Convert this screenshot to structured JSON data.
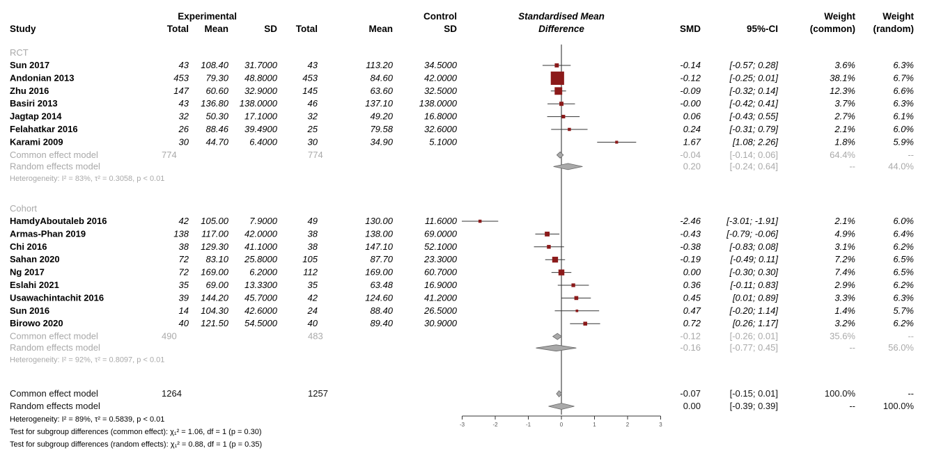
{
  "chart_data": {
    "type": "forest",
    "headers": {
      "study": "Study",
      "experimental": "Experimental",
      "control": "Control",
      "total": "Total",
      "mean": "Mean",
      "sd": "SD",
      "plot_title_line1": "Standardised Mean",
      "plot_title_line2": "Difference",
      "smd": "SMD",
      "ci": "95%-CI",
      "weight": "Weight",
      "weight_common": "(common)",
      "weight_random": "(random)"
    },
    "axis": {
      "xlim": [
        -3,
        3
      ],
      "null_line": 0
    },
    "colors": {
      "box": "#8b1a1a",
      "summary": "#a9a9a9",
      "line": "#333333",
      "muted": "#a9a9a9"
    },
    "subgroups": [
      {
        "label": "RCT",
        "studies": [
          {
            "name": "Sun 2017",
            "e_total": "43",
            "e_mean": "108.40",
            "e_sd": "31.7000",
            "c_total": "43",
            "c_mean": "113.20",
            "c_sd": "34.5000",
            "smd": -0.14,
            "lower": -0.57,
            "upper": 0.28,
            "smd_text": "-0.14",
            "ci_text": "[-0.57; 0.28]",
            "w_common": "3.6%",
            "w_random": "6.3%",
            "weight": 3.6
          },
          {
            "name": "Andonian 2013",
            "e_total": "453",
            "e_mean": "79.30",
            "e_sd": "48.8000",
            "c_total": "453",
            "c_mean": "84.60",
            "c_sd": "42.0000",
            "smd": -0.12,
            "lower": -0.25,
            "upper": 0.01,
            "smd_text": "-0.12",
            "ci_text": "[-0.25; 0.01]",
            "w_common": "38.1%",
            "w_random": "6.7%",
            "weight": 38.1
          },
          {
            "name": "Zhu 2016",
            "e_total": "147",
            "e_mean": "60.60",
            "e_sd": "32.9000",
            "c_total": "145",
            "c_mean": "63.60",
            "c_sd": "32.5000",
            "smd": -0.09,
            "lower": -0.32,
            "upper": 0.14,
            "smd_text": "-0.09",
            "ci_text": "[-0.32; 0.14]",
            "w_common": "12.3%",
            "w_random": "6.6%",
            "weight": 12.3
          },
          {
            "name": "Basiri 2013",
            "e_total": "43",
            "e_mean": "136.80",
            "e_sd": "138.0000",
            "c_total": "46",
            "c_mean": "137.10",
            "c_sd": "138.0000",
            "smd": 0.0,
            "lower": -0.42,
            "upper": 0.41,
            "smd_text": "-0.00",
            "ci_text": "[-0.42; 0.41]",
            "w_common": "3.7%",
            "w_random": "6.3%",
            "weight": 3.7
          },
          {
            "name": "Jagtap 2014",
            "e_total": "32",
            "e_mean": "50.30",
            "e_sd": "17.1000",
            "c_total": "32",
            "c_mean": "49.20",
            "c_sd": "16.8000",
            "smd": 0.06,
            "lower": -0.43,
            "upper": 0.55,
            "smd_text": "0.06",
            "ci_text": "[-0.43; 0.55]",
            "w_common": "2.7%",
            "w_random": "6.1%",
            "weight": 2.7
          },
          {
            "name": "Felahatkar 2016",
            "e_total": "26",
            "e_mean": "88.46",
            "e_sd": "39.4900",
            "c_total": "25",
            "c_mean": "79.58",
            "c_sd": "32.6000",
            "smd": 0.24,
            "lower": -0.31,
            "upper": 0.79,
            "smd_text": "0.24",
            "ci_text": "[-0.31; 0.79]",
            "w_common": "2.1%",
            "w_random": "6.0%",
            "weight": 2.1
          },
          {
            "name": "Karami 2009",
            "e_total": "30",
            "e_mean": "44.70",
            "e_sd": "6.4000",
            "c_total": "30",
            "c_mean": "34.90",
            "c_sd": "5.1000",
            "smd": 1.67,
            "lower": 1.08,
            "upper": 2.26,
            "smd_text": "1.67",
            "ci_text": "[1.08; 2.26]",
            "w_common": "1.8%",
            "w_random": "5.9%",
            "weight": 1.8
          }
        ],
        "common": {
          "label": "Common effect model",
          "e_total": "774",
          "c_total": "774",
          "smd": -0.04,
          "lower": -0.14,
          "upper": 0.06,
          "smd_text": "-0.04",
          "ci_text": "[-0.14; 0.06]",
          "w_common": "64.4%",
          "w_random": "--"
        },
        "random": {
          "label": "Random effects model",
          "smd": 0.2,
          "lower": -0.24,
          "upper": 0.64,
          "smd_text": "0.20",
          "ci_text": "[-0.24; 0.64]",
          "w_common": "--",
          "w_random": "44.0%"
        },
        "het": "Heterogeneity: I² = 83%, τ² = 0.3058, p < 0.01"
      },
      {
        "label": "Cohort",
        "studies": [
          {
            "name": "HamdyAboutaleb 2016",
            "e_total": "42",
            "e_mean": "105.00",
            "e_sd": "7.9000",
            "c_total": "49",
            "c_mean": "130.00",
            "c_sd": "11.6000",
            "smd": -2.46,
            "lower": -3.01,
            "upper": -1.91,
            "smd_text": "-2.46",
            "ci_text": "[-3.01; -1.91]",
            "w_common": "2.1%",
            "w_random": "6.0%",
            "weight": 2.1
          },
          {
            "name": "Armas-Phan 2019",
            "e_total": "138",
            "e_mean": "117.00",
            "e_sd": "42.0000",
            "c_total": "38",
            "c_mean": "138.00",
            "c_sd": "69.0000",
            "smd": -0.43,
            "lower": -0.79,
            "upper": -0.06,
            "smd_text": "-0.43",
            "ci_text": "[-0.79; -0.06]",
            "w_common": "4.9%",
            "w_random": "6.4%",
            "weight": 4.9
          },
          {
            "name": "Chi 2016",
            "e_total": "38",
            "e_mean": "129.30",
            "e_sd": "41.1000",
            "c_total": "38",
            "c_mean": "147.10",
            "c_sd": "52.1000",
            "smd": -0.38,
            "lower": -0.83,
            "upper": 0.08,
            "smd_text": "-0.38",
            "ci_text": "[-0.83; 0.08]",
            "w_common": "3.1%",
            "w_random": "6.2%",
            "weight": 3.1
          },
          {
            "name": "Sahan 2020",
            "e_total": "72",
            "e_mean": "83.10",
            "e_sd": "25.8000",
            "c_total": "105",
            "c_mean": "87.70",
            "c_sd": "23.3000",
            "smd": -0.19,
            "lower": -0.49,
            "upper": 0.11,
            "smd_text": "-0.19",
            "ci_text": "[-0.49; 0.11]",
            "w_common": "7.2%",
            "w_random": "6.5%",
            "weight": 7.2
          },
          {
            "name": "Ng 2017",
            "e_total": "72",
            "e_mean": "169.00",
            "e_sd": "6.2000",
            "c_total": "112",
            "c_mean": "169.00",
            "c_sd": "60.7000",
            "smd": 0.0,
            "lower": -0.3,
            "upper": 0.3,
            "smd_text": "0.00",
            "ci_text": "[-0.30; 0.30]",
            "w_common": "7.4%",
            "w_random": "6.5%",
            "weight": 7.4
          },
          {
            "name": "Eslahi 2021",
            "e_total": "35",
            "e_mean": "69.00",
            "e_sd": "13.3300",
            "c_total": "35",
            "c_mean": "63.48",
            "c_sd": "16.9000",
            "smd": 0.36,
            "lower": -0.11,
            "upper": 0.83,
            "smd_text": "0.36",
            "ci_text": "[-0.11; 0.83]",
            "w_common": "2.9%",
            "w_random": "6.2%",
            "weight": 2.9
          },
          {
            "name": "Usawachintachit 2016",
            "e_total": "39",
            "e_mean": "144.20",
            "e_sd": "45.7000",
            "c_total": "42",
            "c_mean": "124.60",
            "c_sd": "41.2000",
            "smd": 0.45,
            "lower": 0.01,
            "upper": 0.89,
            "smd_text": "0.45",
            "ci_text": "[0.01; 0.89]",
            "w_common": "3.3%",
            "w_random": "6.3%",
            "weight": 3.3
          },
          {
            "name": "Sun 2016",
            "e_total": "14",
            "e_mean": "104.30",
            "e_sd": "42.6000",
            "c_total": "24",
            "c_mean": "88.40",
            "c_sd": "26.5000",
            "smd": 0.47,
            "lower": -0.2,
            "upper": 1.14,
            "smd_text": "0.47",
            "ci_text": "[-0.20; 1.14]",
            "w_common": "1.4%",
            "w_random": "5.7%",
            "weight": 1.4
          },
          {
            "name": "Birowo 2020",
            "e_total": "40",
            "e_mean": "121.50",
            "e_sd": "54.5000",
            "c_total": "40",
            "c_mean": "89.40",
            "c_sd": "30.9000",
            "smd": 0.72,
            "lower": 0.26,
            "upper": 1.17,
            "smd_text": "0.72",
            "ci_text": "[0.26; 1.17]",
            "w_common": "3.2%",
            "w_random": "6.2%",
            "weight": 3.2
          }
        ],
        "common": {
          "label": "Common effect model",
          "e_total": "490",
          "c_total": "483",
          "smd": -0.12,
          "lower": -0.26,
          "upper": 0.01,
          "smd_text": "-0.12",
          "ci_text": "[-0.26; 0.01]",
          "w_common": "35.6%",
          "w_random": "--"
        },
        "random": {
          "label": "Random effects model",
          "smd": -0.16,
          "lower": -0.77,
          "upper": 0.45,
          "smd_text": "-0.16",
          "ci_text": "[-0.77; 0.45]",
          "w_common": "--",
          "w_random": "56.0%"
        },
        "het": "Heterogeneity: I² = 92%, τ² = 0.8097, p < 0.01"
      }
    ],
    "overall": {
      "common": {
        "label": "Common effect model",
        "e_total": "1264",
        "c_total": "1257",
        "smd": -0.07,
        "lower": -0.15,
        "upper": 0.01,
        "smd_text": "-0.07",
        "ci_text": "[-0.15; 0.01]",
        "w_common": "100.0%",
        "w_random": "--"
      },
      "random": {
        "label": "Random effects model",
        "smd": 0.0,
        "lower": -0.39,
        "upper": 0.39,
        "smd_text": "0.00",
        "ci_text": "[-0.39; 0.39]",
        "w_common": "--",
        "w_random": "100.0%"
      },
      "het": "Heterogeneity: I² = 89%, τ² = 0.5839, p < 0.01",
      "test_common": "Test for subgroup differences (common effect): χ₁² = 1.06, df = 1 (p = 0.30)",
      "test_random": "Test for subgroup differences (random effects): χ₁² = 0.88, df = 1 (p = 0.35)"
    }
  }
}
